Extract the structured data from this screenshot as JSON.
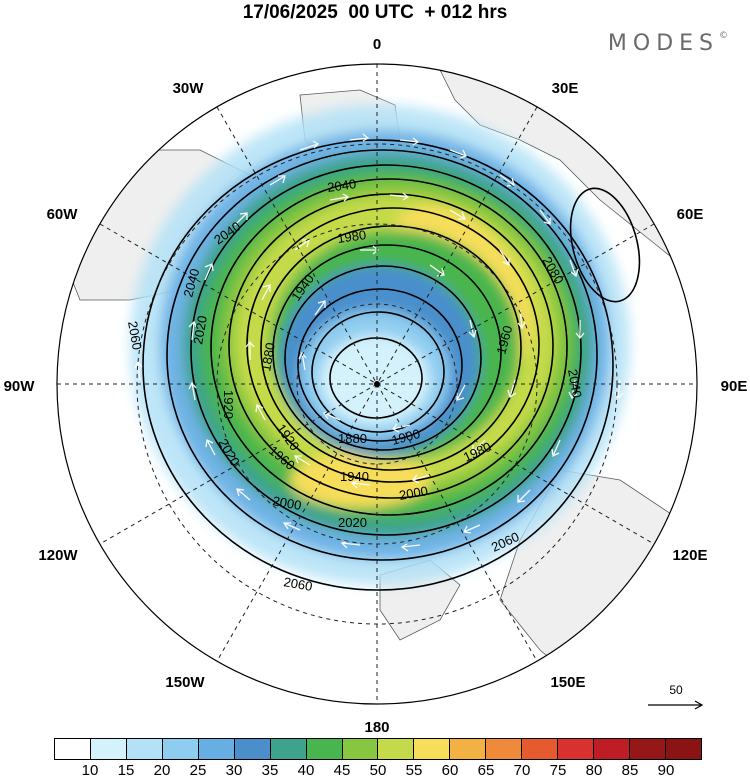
{
  "title": "17/06/2025  00 UTC  + 012 hrs",
  "brand": "MODES",
  "brand_mark": "©",
  "longitude_labels": [
    {
      "text": "0",
      "lon": 0
    },
    {
      "text": "30E",
      "lon": 30
    },
    {
      "text": "60E",
      "lon": 60
    },
    {
      "text": "90E",
      "lon": 90
    },
    {
      "text": "120E",
      "lon": 120
    },
    {
      "text": "150E",
      "lon": 150
    },
    {
      "text": "180",
      "lon": 180
    },
    {
      "text": "150W",
      "lon": -150
    },
    {
      "text": "120W",
      "lon": -120
    },
    {
      "text": "90W",
      "lon": -90
    },
    {
      "text": "60W",
      "lon": -60
    },
    {
      "text": "30W",
      "lon": -30
    }
  ],
  "contour_labels": [
    "2040",
    "2040",
    "1980",
    "2080",
    "2040",
    "2020",
    "1940",
    "2060",
    "1880",
    "1920",
    "1900",
    "1960",
    "1980",
    "2040",
    "2020",
    "1920",
    "1960",
    "1940",
    "2000",
    "2000",
    "2020",
    "2060",
    "2060",
    "1880"
  ],
  "reference_vector": {
    "value": "50"
  },
  "colorbar": {
    "levels": [
      "10",
      "15",
      "20",
      "25",
      "30",
      "35",
      "40",
      "45",
      "50",
      "55",
      "60",
      "65",
      "70",
      "75",
      "80",
      "85",
      "90"
    ],
    "colors": [
      "#ffffff",
      "#d4f2fb",
      "#b3e2f7",
      "#8fcdf0",
      "#67aee3",
      "#4a8fcc",
      "#3ea38c",
      "#48b54e",
      "#86c640",
      "#c4da4a",
      "#f6de5a",
      "#f3b143",
      "#ee8a39",
      "#e65a30",
      "#d93030",
      "#bf1d26",
      "#961717"
    ]
  }
}
